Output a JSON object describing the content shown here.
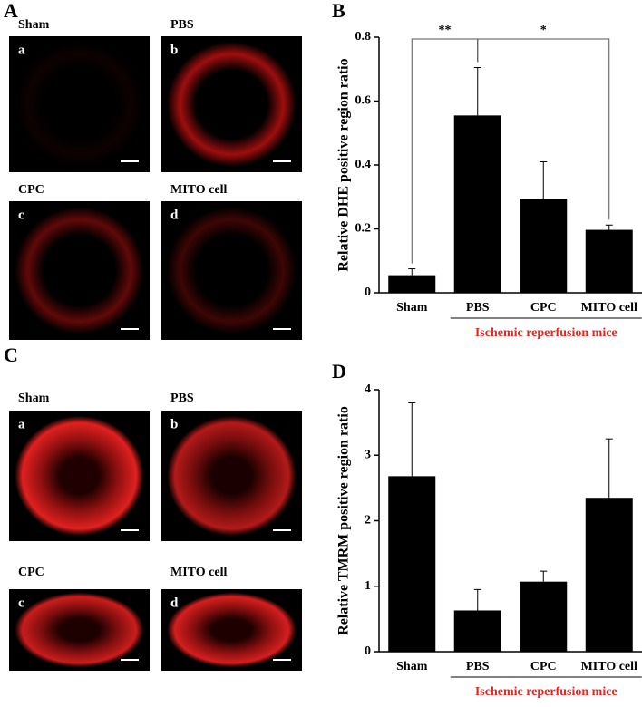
{
  "panel_labels": [
    "A",
    "B",
    "C",
    "D"
  ],
  "images_A": [
    {
      "title": "Sham",
      "letter": "a"
    },
    {
      "title": "PBS",
      "letter": "b"
    },
    {
      "title": "CPC",
      "letter": "c"
    },
    {
      "title": "MITO cell",
      "letter": "d"
    }
  ],
  "images_C": [
    {
      "title": "Sham",
      "letter": "a"
    },
    {
      "title": "PBS",
      "letter": "b"
    },
    {
      "title": "CPC",
      "letter": "c"
    },
    {
      "title": "MITO cell",
      "letter": "d"
    }
  ],
  "chart_data": [
    {
      "type": "bar",
      "ylabel": "Relative DHE positive region ratio",
      "categories": [
        "Sham",
        "PBS",
        "CPC",
        "MITO cell"
      ],
      "values": [
        0.055,
        0.555,
        0.295,
        0.197
      ],
      "errors": [
        0.02,
        0.15,
        0.115,
        0.015
      ],
      "color": "#000000",
      "ylim": [
        0,
        0.8
      ],
      "yticks": [
        0,
        0.2,
        0.4,
        0.6,
        0.8
      ],
      "group": {
        "label": "Ischemic reperfusion mice",
        "from": 1,
        "to": 3,
        "color": "#e8261f"
      },
      "annotations": [
        {
          "text": "**",
          "from": 0,
          "to": 1
        },
        {
          "text": "*",
          "from": 1,
          "to": 3
        }
      ]
    },
    {
      "type": "bar",
      "ylabel": "Relative TMRM positive region ratio",
      "categories": [
        "Sham",
        "PBS",
        "CPC",
        "MITO cell"
      ],
      "values": [
        2.68,
        0.63,
        1.07,
        2.35
      ],
      "errors": [
        1.12,
        0.32,
        0.16,
        0.9
      ],
      "color": "#000000",
      "ylim": [
        0,
        4
      ],
      "yticks": [
        0,
        1,
        2,
        3,
        4
      ],
      "group": {
        "label": "Ischemic reperfusion mice",
        "from": 1,
        "to": 3,
        "color": "#e8261f"
      }
    }
  ]
}
